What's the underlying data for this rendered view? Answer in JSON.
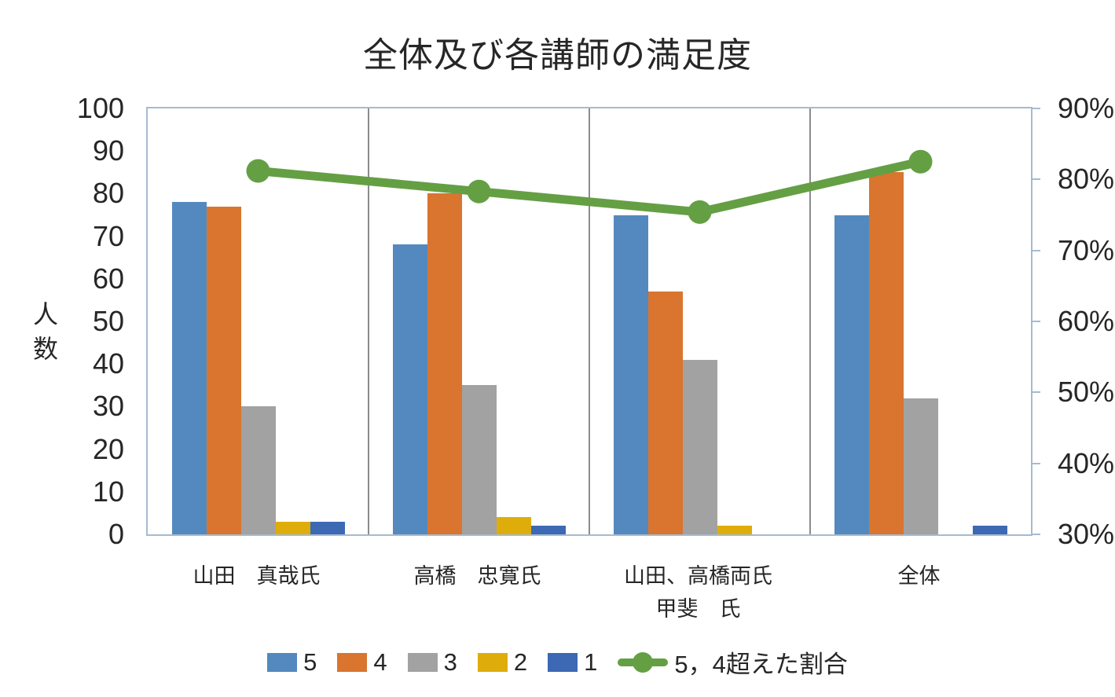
{
  "title": "全体及び各講師の満足度",
  "chart_data": {
    "type": "combo",
    "bar_mode": "grouped",
    "categories": [
      "山田　真哉氏",
      "高橋　忠寛氏",
      [
        "山田、高橋両氏",
        "甲斐　氏"
      ],
      "全体"
    ],
    "series": [
      {
        "name": "5",
        "type": "bar",
        "axis": "left",
        "color": "#5389BE",
        "values": [
          78,
          68,
          75,
          75
        ]
      },
      {
        "name": "4",
        "type": "bar",
        "axis": "left",
        "color": "#D9752F",
        "values": [
          77,
          80,
          57,
          85
        ]
      },
      {
        "name": "3",
        "type": "bar",
        "axis": "left",
        "color": "#A2A2A2",
        "values": [
          30,
          35,
          41,
          32
        ]
      },
      {
        "name": "2",
        "type": "bar",
        "axis": "left",
        "color": "#DFAD0B",
        "values": [
          3,
          4,
          2,
          0
        ]
      },
      {
        "name": "1",
        "type": "bar",
        "axis": "left",
        "color": "#3D68B4",
        "values": [
          3,
          2,
          0,
          2
        ]
      },
      {
        "name": "5，4超えた割合",
        "type": "line",
        "axis": "right",
        "color": "#649F44",
        "values_percent": [
          81.2,
          78.3,
          75.4,
          82.5
        ]
      }
    ],
    "left_axis": {
      "title": "人数",
      "min": 0,
      "max": 100,
      "step": 10
    },
    "right_axis": {
      "min": 30,
      "max": 90,
      "step": 10,
      "unit": "%"
    },
    "legend_position": "bottom",
    "plot_frame_color": "#A5BBD1",
    "category_divider_color": "#8C8C8C"
  }
}
